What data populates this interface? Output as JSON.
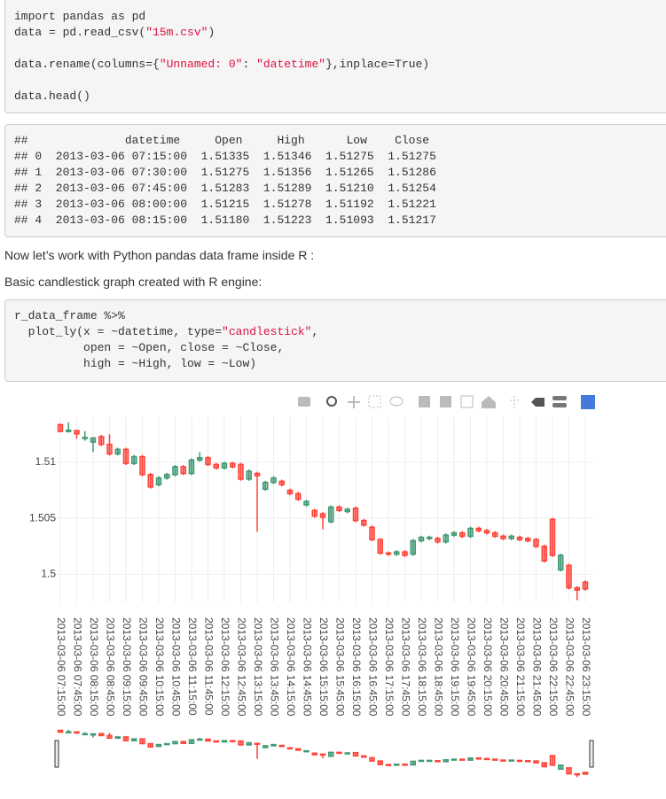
{
  "code_blocks": [
    {
      "groups": [
        [
          "import pandas as pd",
          "data = pd.read_csv(\"15m.csv\")"
        ],
        [
          "data.rename(columns={\"Unnamed: 0\": \"datetime\"},inplace=True)"
        ],
        [
          "data.head()"
        ]
      ]
    },
    {
      "groups": [
        [
          "r_data_frame %>%",
          "  plot_ly(x = ~datetime, type=\"candlestick\",",
          "          open = ~Open, close = ~Close,",
          "          high = ~High, low = ~Low)"
        ]
      ]
    }
  ],
  "output": {
    "lines": [
      "##              datetime     Open     High      Low    Close",
      "## 0  2013-03-06 07:15:00  1.51335  1.51346  1.51275  1.51275",
      "## 1  2013-03-06 07:30:00  1.51275  1.51356  1.51265  1.51286",
      "## 2  2013-03-06 07:45:00  1.51283  1.51289  1.51210  1.51254",
      "## 3  2013-03-06 08:00:00  1.51215  1.51278  1.51192  1.51221",
      "## 4  2013-03-06 08:15:00  1.51180  1.51223  1.51093  1.51217"
    ]
  },
  "paragraphs": [
    "Now let’s work with Python pandas data frame inside R :",
    "Basic candlestick graph created with R engine:"
  ],
  "chart_data": {
    "type": "candlestick",
    "x": [
      "2013-03-06 07:15:00",
      "2013-03-06 07:30:00",
      "2013-03-06 07:45:00",
      "2013-03-06 08:00:00",
      "2013-03-06 08:15:00",
      "2013-03-06 08:30:00",
      "2013-03-06 08:45:00",
      "2013-03-06 09:00:00",
      "2013-03-06 09:15:00",
      "2013-03-06 09:30:00",
      "2013-03-06 09:45:00",
      "2013-03-06 10:00:00",
      "2013-03-06 10:15:00",
      "2013-03-06 10:30:00",
      "2013-03-06 10:45:00",
      "2013-03-06 11:00:00",
      "2013-03-06 11:15:00",
      "2013-03-06 11:30:00",
      "2013-03-06 11:45:00",
      "2013-03-06 12:00:00",
      "2013-03-06 12:15:00",
      "2013-03-06 12:30:00",
      "2013-03-06 12:45:00",
      "2013-03-06 13:00:00",
      "2013-03-06 13:15:00",
      "2013-03-06 13:30:00",
      "2013-03-06 13:45:00",
      "2013-03-06 14:00:00",
      "2013-03-06 14:15:00",
      "2013-03-06 14:30:00",
      "2013-03-06 14:45:00",
      "2013-03-06 15:00:00",
      "2013-03-06 15:15:00",
      "2013-03-06 15:30:00",
      "2013-03-06 15:45:00",
      "2013-03-06 16:00:00",
      "2013-03-06 16:15:00",
      "2013-03-06 16:30:00",
      "2013-03-06 16:45:00",
      "2013-03-06 17:00:00",
      "2013-03-06 17:15:00",
      "2013-03-06 17:30:00",
      "2013-03-06 17:45:00",
      "2013-03-06 18:00:00",
      "2013-03-06 18:15:00",
      "2013-03-06 18:30:00",
      "2013-03-06 18:45:00",
      "2013-03-06 19:00:00",
      "2013-03-06 19:15:00",
      "2013-03-06 19:30:00",
      "2013-03-06 19:45:00",
      "2013-03-06 20:00:00",
      "2013-03-06 20:15:00",
      "2013-03-06 20:30:00",
      "2013-03-06 20:45:00",
      "2013-03-06 21:00:00",
      "2013-03-06 21:15:00",
      "2013-03-06 21:30:00",
      "2013-03-06 21:45:00",
      "2013-03-06 22:00:00",
      "2013-03-06 22:15:00",
      "2013-03-06 22:30:00",
      "2013-03-06 22:45:00",
      "2013-03-06 23:00:00",
      "2013-03-06 23:15:00"
    ],
    "open": [
      1.51335,
      1.51275,
      1.51283,
      1.51215,
      1.5118,
      1.51228,
      1.5116,
      1.51075,
      1.51115,
      1.5099,
      1.5105,
      1.5089,
      1.508,
      1.5086,
      1.5089,
      1.5096,
      1.509,
      1.5102,
      1.5104,
      1.5098,
      1.5095,
      1.5099,
      1.5098,
      1.5085,
      1.509,
      1.5076,
      1.5082,
      1.5083,
      1.5075,
      1.5072,
      1.5062,
      1.5057,
      1.5054,
      1.5047,
      1.506,
      1.5056,
      1.5059,
      1.5048,
      1.5042,
      1.5031,
      1.5019,
      1.5018,
      1.502,
      1.5018,
      1.503,
      1.5032,
      1.5032,
      1.5029,
      1.5035,
      1.5037,
      1.5034,
      1.5041,
      1.5039,
      1.5037,
      1.5034,
      1.5032,
      1.5033,
      1.5032,
      1.5031,
      1.5025,
      1.5049,
      1.5004,
      1.5008,
      1.4988,
      1.4993
    ],
    "high": [
      1.51346,
      1.51356,
      1.51289,
      1.51278,
      1.51223,
      1.51245,
      1.5125,
      1.5113,
      1.5113,
      1.51065,
      1.51065,
      1.50905,
      1.50875,
      1.50905,
      1.50975,
      1.50975,
      1.51035,
      1.5109,
      1.51055,
      1.50995,
      1.51005,
      1.51005,
      1.50995,
      1.50935,
      1.50915,
      1.50835,
      1.50875,
      1.50845,
      1.50765,
      1.50735,
      1.50665,
      1.50585,
      1.50555,
      1.50615,
      1.50615,
      1.50595,
      1.50605,
      1.50495,
      1.50435,
      1.50325,
      1.50205,
      1.50215,
      1.50215,
      1.50315,
      1.50345,
      1.50345,
      1.50335,
      1.50365,
      1.50385,
      1.50385,
      1.50425,
      1.50425,
      1.50405,
      1.50385,
      1.50355,
      1.50355,
      1.50345,
      1.50335,
      1.50325,
      1.50265,
      1.50505,
      1.50185,
      1.50095,
      1.49895,
      1.49945
    ],
    "low": [
      1.51275,
      1.51265,
      1.5121,
      1.51192,
      1.51093,
      1.51145,
      1.5106,
      1.5106,
      1.50975,
      1.50975,
      1.50875,
      1.50765,
      1.50785,
      1.50845,
      1.50875,
      1.50885,
      1.50885,
      1.51005,
      1.50965,
      1.50935,
      1.50935,
      1.50945,
      1.50835,
      1.50835,
      1.5038,
      1.50745,
      1.50805,
      1.50785,
      1.50705,
      1.50655,
      1.50605,
      1.50505,
      1.504,
      1.50455,
      1.50555,
      1.50545,
      1.50465,
      1.50425,
      1.50295,
      1.50175,
      1.50165,
      1.50165,
      1.50155,
      1.50165,
      1.50285,
      1.50305,
      1.50275,
      1.50275,
      1.50335,
      1.50325,
      1.50325,
      1.50375,
      1.50355,
      1.50325,
      1.50305,
      1.50305,
      1.50295,
      1.50285,
      1.50235,
      1.50105,
      1.50155,
      1.50025,
      1.49865,
      1.4977,
      1.49855
    ],
    "close": [
      1.51275,
      1.51286,
      1.51254,
      1.51221,
      1.51217,
      1.5116,
      1.51075,
      1.51115,
      1.5099,
      1.5105,
      1.5089,
      1.5078,
      1.5086,
      1.5089,
      1.5096,
      1.509,
      1.5102,
      1.5104,
      1.5098,
      1.5095,
      1.5099,
      1.5096,
      1.5085,
      1.5092,
      1.5088,
      1.5082,
      1.5086,
      1.508,
      1.5072,
      1.5067,
      1.5065,
      1.5052,
      1.5051,
      1.506,
      1.5057,
      1.5058,
      1.5048,
      1.5044,
      1.5031,
      1.5019,
      1.5018,
      1.502,
      1.5017,
      1.503,
      1.5033,
      1.5033,
      1.5029,
      1.5035,
      1.5037,
      1.5034,
      1.5041,
      1.5039,
      1.5037,
      1.5034,
      1.5032,
      1.5034,
      1.5031,
      1.503,
      1.5025,
      1.5012,
      1.5017,
      1.5017,
      1.4988,
      1.4986,
      1.4987
    ],
    "increasing_color": "#3d9970",
    "decreasing_color": "#ff4136",
    "ylim": [
      1.4975,
      1.5141
    ],
    "yticks": [
      1.5,
      1.505,
      1.51
    ],
    "grid": true,
    "rangeslider": true
  }
}
